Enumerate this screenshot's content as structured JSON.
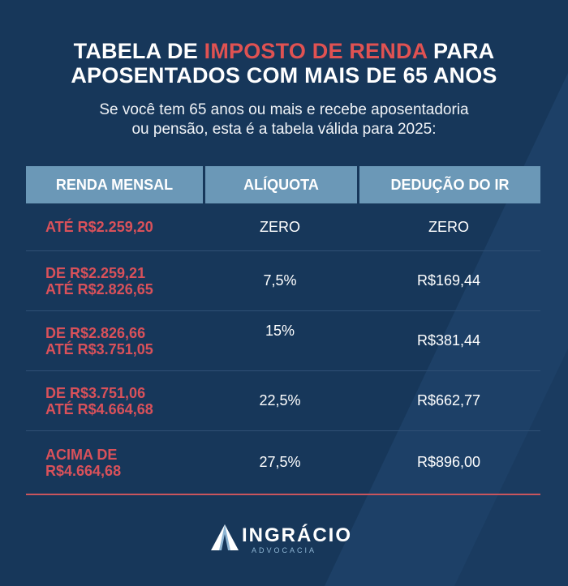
{
  "title": {
    "line1_prefix": "TABELA DE ",
    "line1_accent": "IMPOSTO DE RENDA",
    "line1_suffix": " PARA",
    "line2": "APOSENTADOS COM MAIS DE 65 ANOS"
  },
  "subtitle": {
    "line1": "Se você tem 65 anos ou mais e recebe aposentadoria",
    "line2": "ou pensão, esta é a tabela válida para 2025:"
  },
  "table": {
    "headers": [
      "RENDA MENSAL",
      "ALÍQUOTA",
      "DEDUÇÃO DO IR"
    ],
    "rows": [
      {
        "renda": [
          "ATÉ R$2.259,20"
        ],
        "aliquota": "ZERO",
        "deducao": "ZERO"
      },
      {
        "renda": [
          "DE R$2.259,21",
          "ATÉ R$2.826,65"
        ],
        "aliquota": "7,5%",
        "deducao": "R$169,44"
      },
      {
        "renda": [
          "DE R$2.826,66",
          "ATÉ R$3.751,05"
        ],
        "aliquota": "15%",
        "deducao": "R$381,44"
      },
      {
        "renda": [
          "DE R$3.751,06",
          "ATÉ R$4.664,68"
        ],
        "aliquota": "22,5%",
        "deducao": "R$662,77"
      },
      {
        "renda": [
          "ACIMA DE",
          "R$4.664,68"
        ],
        "aliquota": "27,5%",
        "deducao": "R$896,00"
      }
    ]
  },
  "logo": {
    "name": "INGRÁCIO",
    "sub": "ADVOCACIA"
  },
  "colors": {
    "background": "#17375a",
    "accent_red": "#e05252",
    "header_blue": "#6b98b7"
  }
}
